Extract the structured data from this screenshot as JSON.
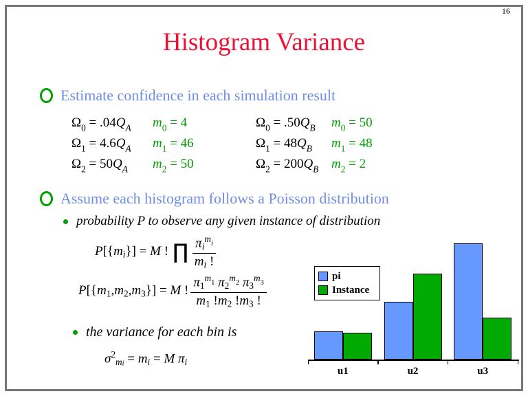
{
  "page": {
    "number": "16"
  },
  "title": "Histogram Variance",
  "colors": {
    "title_red": "#EE1133",
    "heading_blue": "#6F8DE3",
    "accent_green": "#00A000",
    "bar_blue": "#6699FF",
    "bar_green": "#00AA00",
    "frame_gray": "#757575"
  },
  "bullets": {
    "b1": "Estimate confidence in each simulation result",
    "b2": "Assume each histogram follows a Poisson distribution",
    "sb1": "probability P to observe any given instance of distribution",
    "sb2": "the variance for each bin is"
  },
  "equations": {
    "a_omega": [
      [
        [
          "Ω",
          ""
        ],
        [
          "0",
          "sb"
        ],
        [
          " = .04",
          ""
        ],
        [
          "Q",
          "it"
        ],
        [
          "A",
          "sb it"
        ]
      ],
      [
        [
          "Ω",
          ""
        ],
        [
          "1",
          "sb"
        ],
        [
          " = 4.6",
          ""
        ],
        [
          "Q",
          "it"
        ],
        [
          "A",
          "sb it"
        ]
      ],
      [
        [
          "Ω",
          ""
        ],
        [
          "2",
          "sb"
        ],
        [
          " = 50",
          ""
        ],
        [
          "Q",
          "it"
        ],
        [
          "A",
          "sb it"
        ]
      ]
    ],
    "a_m": [
      [
        [
          "m",
          "it"
        ],
        [
          "0",
          "sb"
        ],
        [
          " = 4",
          ""
        ]
      ],
      [
        [
          "m",
          "it"
        ],
        [
          "1",
          "sb"
        ],
        [
          " = 46",
          ""
        ]
      ],
      [
        [
          "m",
          "it"
        ],
        [
          "2",
          "sb"
        ],
        [
          " = 50",
          ""
        ]
      ]
    ],
    "b_omega": [
      [
        [
          "Ω",
          ""
        ],
        [
          "0",
          "sb"
        ],
        [
          " = .50",
          ""
        ],
        [
          "Q",
          "it"
        ],
        [
          "B",
          "sb it"
        ]
      ],
      [
        [
          "Ω",
          ""
        ],
        [
          "1",
          "sb"
        ],
        [
          " = 48",
          ""
        ],
        [
          "Q",
          "it"
        ],
        [
          "B",
          "sb it"
        ]
      ],
      [
        [
          "Ω",
          ""
        ],
        [
          "2",
          "sb"
        ],
        [
          " = 200",
          ""
        ],
        [
          "Q",
          "it"
        ],
        [
          "B",
          "sb it"
        ]
      ]
    ],
    "b_m": [
      [
        [
          "m",
          "it"
        ],
        [
          "0",
          "sb"
        ],
        [
          " = 50",
          ""
        ]
      ],
      [
        [
          "m",
          "it"
        ],
        [
          "1",
          "sb"
        ],
        [
          " = 48",
          ""
        ]
      ],
      [
        [
          "m",
          "it"
        ],
        [
          "2",
          "sb"
        ],
        [
          " = 2",
          ""
        ]
      ]
    ]
  },
  "formulas": {
    "f1": {
      "lhs": [
        [
          "P",
          "it"
        ],
        [
          "[{",
          ""
        ],
        [
          "m",
          "it"
        ],
        [
          "i",
          "sb it"
        ],
        [
          "}]",
          ""
        ],
        [
          " = ",
          ""
        ],
        [
          "M",
          "it"
        ],
        [
          " !",
          ""
        ]
      ],
      "prod": "∏",
      "num": [
        [
          "π",
          "it"
        ],
        [
          "i",
          "sb it"
        ],
        [
          "m",
          "sp it"
        ],
        [
          "i",
          "spsb it"
        ]
      ],
      "den": [
        [
          "m",
          "it"
        ],
        [
          "i",
          "sb it"
        ],
        [
          " !",
          ""
        ]
      ]
    },
    "f2": {
      "lhs": [
        [
          "P",
          "it"
        ],
        [
          "[{",
          ""
        ],
        [
          "m",
          "it"
        ],
        [
          "1",
          "sb"
        ],
        [
          ",",
          ""
        ],
        [
          "m",
          "it"
        ],
        [
          "2",
          "sb"
        ],
        [
          ",",
          ""
        ],
        [
          "m",
          "it"
        ],
        [
          "3",
          "sb"
        ],
        [
          "}]",
          ""
        ],
        [
          " = ",
          ""
        ],
        [
          "M",
          "it"
        ],
        [
          " !",
          ""
        ]
      ],
      "num": [
        [
          "π",
          "it"
        ],
        [
          "1",
          "sb"
        ],
        [
          "m",
          "sp it"
        ],
        [
          "1",
          "spsb"
        ],
        [
          " ",
          ""
        ],
        [
          "π",
          "it"
        ],
        [
          "2",
          "sb"
        ],
        [
          "m",
          "sp it"
        ],
        [
          "2",
          "spsb"
        ],
        [
          " ",
          ""
        ],
        [
          "π",
          "it"
        ],
        [
          "3",
          "sb"
        ],
        [
          "m",
          "sp it"
        ],
        [
          "3",
          "spsb"
        ]
      ],
      "den": [
        [
          "m",
          "it"
        ],
        [
          "1",
          "sb"
        ],
        [
          " !",
          ""
        ],
        [
          "m",
          "it"
        ],
        [
          "2",
          "sb"
        ],
        [
          " !",
          ""
        ],
        [
          "m",
          "it"
        ],
        [
          "3",
          "sb"
        ],
        [
          " !",
          ""
        ]
      ]
    },
    "f3": [
      [
        "σ",
        "it"
      ],
      [
        "2",
        "sp"
      ],
      [
        "m",
        "sb it"
      ],
      [
        "i",
        "sbsb it"
      ],
      [
        " = ",
        ""
      ],
      [
        "m",
        "it"
      ],
      [
        "i",
        "sb it"
      ],
      [
        " = ",
        ""
      ],
      [
        "M",
        "it"
      ],
      [
        " ",
        ""
      ],
      [
        "π",
        "it"
      ],
      [
        "i",
        "sb it"
      ]
    ]
  },
  "chart_data": {
    "type": "bar",
    "categories": [
      "u1",
      "u2",
      "u3"
    ],
    "series": [
      {
        "name": "pi",
        "color": "#6699FF",
        "values": [
          0.24,
          0.5,
          1.0
        ]
      },
      {
        "name": "Instance",
        "color": "#00AA00",
        "values": [
          0.23,
          0.74,
          0.36
        ]
      }
    ],
    "title": "",
    "xlabel": "",
    "ylabel": "",
    "ylim": [
      0,
      1.0
    ],
    "grid": false,
    "y_axis_shown": false,
    "legend_position": "upper-left"
  }
}
